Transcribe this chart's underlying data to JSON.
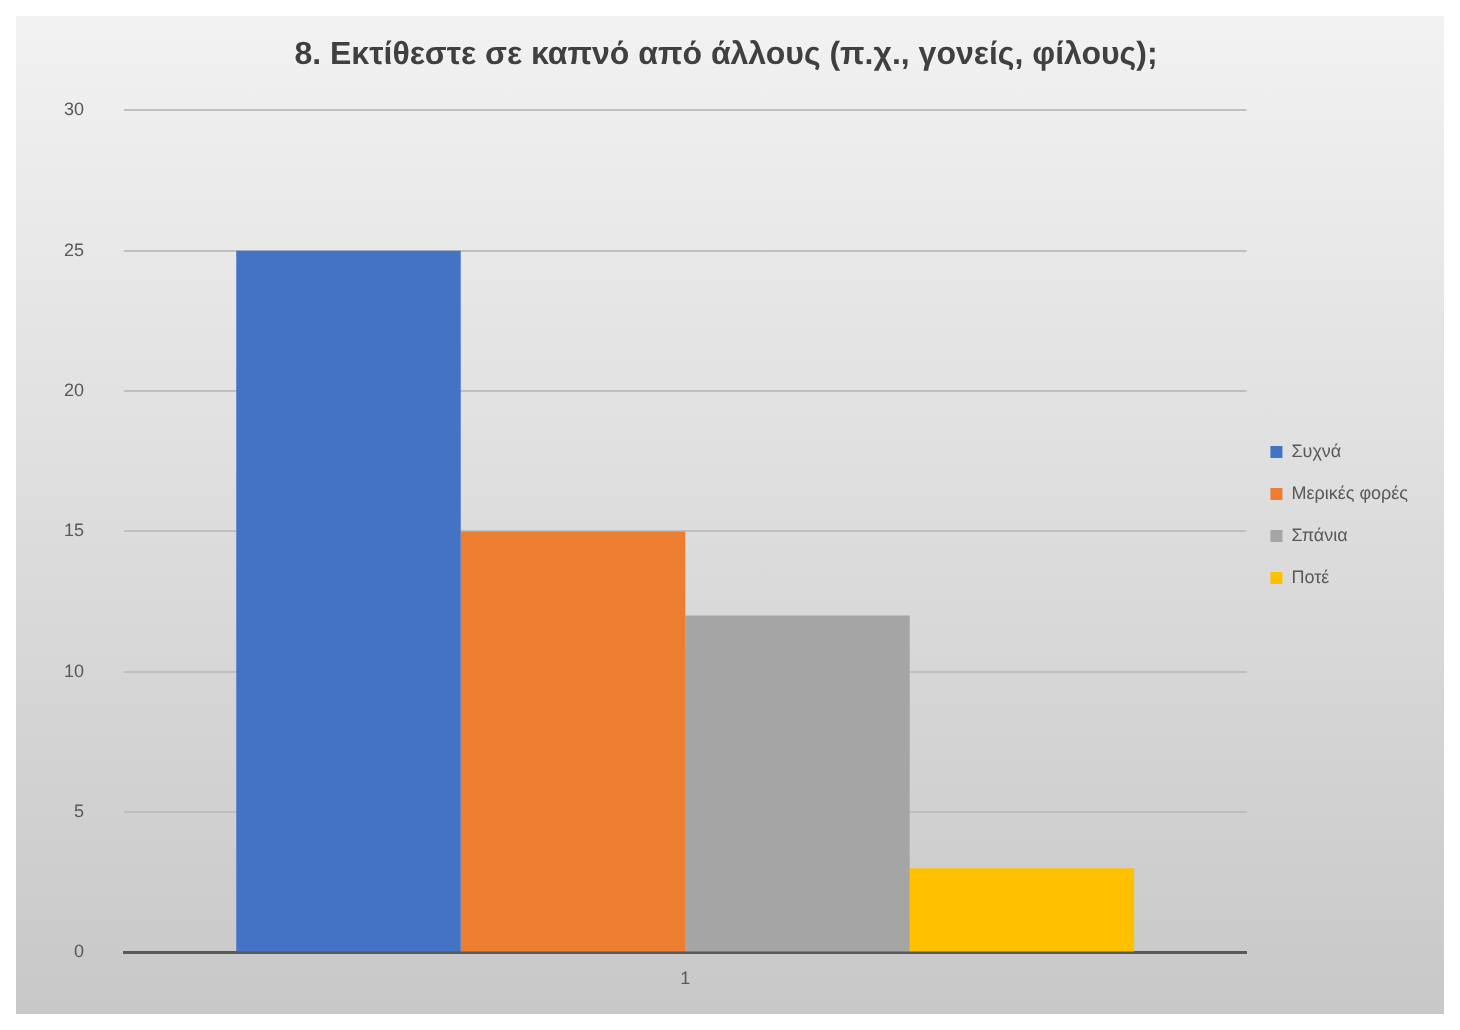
{
  "chart_data": {
    "type": "bar",
    "title": "8. Εκτίθεστε σε καπνό από άλλους (π.χ., γονείς, φίλους);",
    "categories": [
      "1"
    ],
    "series": [
      {
        "name": "Συχνά",
        "color": "#4472c4",
        "values": [
          25
        ]
      },
      {
        "name": "Μερικές φορές",
        "color": "#ed7d31",
        "values": [
          15
        ]
      },
      {
        "name": "Σπάνια",
        "color": "#a5a5a5",
        "values": [
          12
        ]
      },
      {
        "name": "Ποτέ",
        "color": "#ffc000",
        "values": [
          3
        ]
      }
    ],
    "ylim": [
      0,
      30
    ],
    "yticks": [
      0,
      5,
      10,
      15,
      20,
      25,
      30
    ],
    "grid": "y",
    "legend": "right"
  }
}
